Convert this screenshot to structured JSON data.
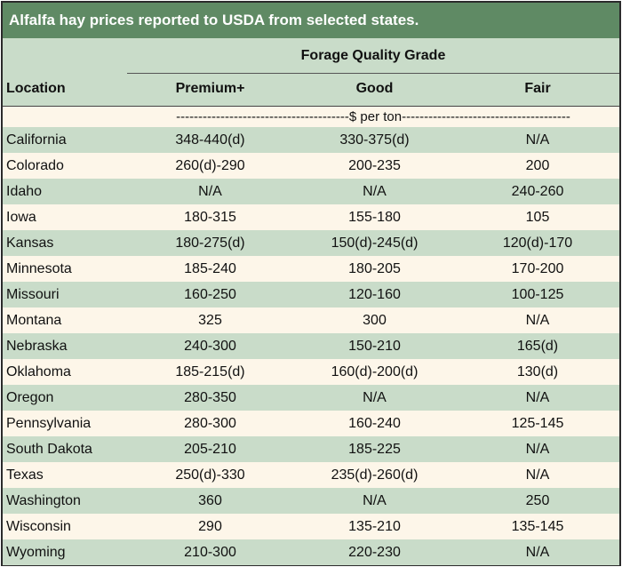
{
  "title": "Alfalfa hay prices reported to USDA from selected states.",
  "colors": {
    "header_bar": "#5f8a64",
    "band": "#c9dcc9",
    "cream": "#fdf6e9"
  },
  "chart_data": {
    "type": "table",
    "group_header": "Forage Quality Grade",
    "columns": [
      "Location",
      "Premium+",
      "Good",
      "Fair"
    ],
    "unit_row": "---------------------------------------$ per ton--------------------------------------",
    "rows": [
      [
        "California",
        "348-440(d)",
        "330-375(d)",
        "N/A"
      ],
      [
        "Colorado",
        "260(d)-290",
        "200-235",
        "200"
      ],
      [
        "Idaho",
        "N/A",
        "N/A",
        "240-260"
      ],
      [
        "Iowa",
        "180-315",
        "155-180",
        "105"
      ],
      [
        "Kansas",
        "180-275(d)",
        "150(d)-245(d)",
        "120(d)-170"
      ],
      [
        "Minnesota",
        "185-240",
        "180-205",
        "170-200"
      ],
      [
        "Missouri",
        "160-250",
        "120-160",
        "100-125"
      ],
      [
        "Montana",
        "325",
        "300",
        "N/A"
      ],
      [
        "Nebraska",
        "240-300",
        "150-210",
        "165(d)"
      ],
      [
        "Oklahoma",
        "185-215(d)",
        "160(d)-200(d)",
        "130(d)"
      ],
      [
        "Oregon",
        "280-350",
        "N/A",
        "N/A"
      ],
      [
        "Pennsylvania",
        "280-300",
        "160-240",
        "125-145"
      ],
      [
        "South Dakota",
        "205-210",
        "185-225",
        "N/A"
      ],
      [
        "Texas",
        "250(d)-330",
        "235(d)-260(d)",
        "N/A"
      ],
      [
        "Washington",
        "360",
        "N/A",
        "250"
      ],
      [
        "Wisconsin",
        "290",
        "135-210",
        "135-145"
      ],
      [
        "Wyoming",
        "210-300",
        "220-230",
        "N/A"
      ]
    ]
  }
}
